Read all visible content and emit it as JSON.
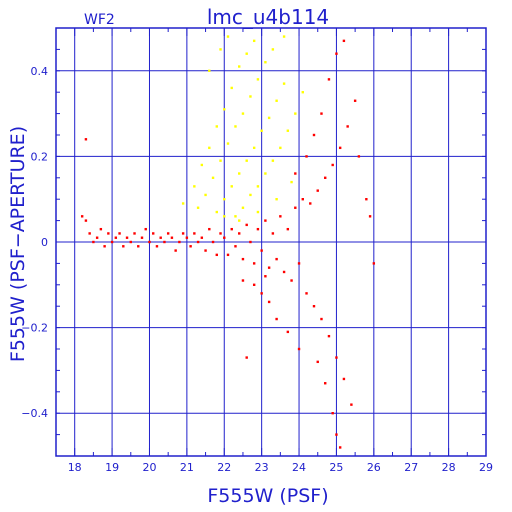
{
  "chart_data": {
    "type": "scatter",
    "title": "lmc_u4b114",
    "panel_label": "WF2",
    "xlabel": "F555W (PSF)",
    "ylabel": "F555W (PSF−APERTURE)",
    "xlim": [
      17.5,
      29
    ],
    "ylim": [
      -0.5,
      0.5
    ],
    "x_ticks": [
      18,
      19,
      20,
      21,
      22,
      23,
      24,
      25,
      26,
      27,
      28,
      29
    ],
    "y_ticks": [
      -0.4,
      -0.2,
      0,
      0.2,
      0.4
    ],
    "y_tick_labels": [
      "−0.4",
      "−0.2",
      "0",
      "0.2",
      "0.4"
    ],
    "grid": true,
    "colors": {
      "axes": "#2020cc",
      "grid": "#2020cc",
      "primary": "#ff0000",
      "secondary": "#ffff00"
    },
    "series": [
      {
        "color": "#ff0000",
        "points": [
          [
            18.2,
            0.06
          ],
          [
            18.3,
            0.05
          ],
          [
            18.4,
            0.02
          ],
          [
            18.5,
            0.0
          ],
          [
            18.6,
            0.01
          ],
          [
            18.7,
            0.03
          ],
          [
            18.8,
            -0.01
          ],
          [
            18.9,
            0.02
          ],
          [
            19.0,
            0.0
          ],
          [
            19.1,
            0.01
          ],
          [
            19.2,
            0.02
          ],
          [
            19.3,
            -0.01
          ],
          [
            19.4,
            0.01
          ],
          [
            19.5,
            0.0
          ],
          [
            19.6,
            0.02
          ],
          [
            19.7,
            -0.01
          ],
          [
            19.8,
            0.01
          ],
          [
            19.9,
            0.03
          ],
          [
            20.0,
            0.0
          ],
          [
            20.1,
            0.02
          ],
          [
            20.2,
            -0.01
          ],
          [
            20.3,
            0.01
          ],
          [
            20.4,
            0.0
          ],
          [
            20.5,
            0.02
          ],
          [
            20.6,
            0.01
          ],
          [
            20.7,
            -0.02
          ],
          [
            20.8,
            0.0
          ],
          [
            20.9,
            0.02
          ],
          [
            21.0,
            0.01
          ],
          [
            21.1,
            -0.01
          ],
          [
            21.2,
            0.02
          ],
          [
            21.3,
            0.0
          ],
          [
            21.4,
            0.01
          ],
          [
            21.5,
            -0.02
          ],
          [
            21.6,
            0.03
          ],
          [
            21.7,
            0.0
          ],
          [
            21.8,
            -0.03
          ],
          [
            21.9,
            0.02
          ],
          [
            22.0,
            0.01
          ],
          [
            22.1,
            -0.03
          ],
          [
            22.2,
            0.03
          ],
          [
            22.3,
            -0.01
          ],
          [
            22.4,
            0.02
          ],
          [
            22.5,
            -0.04
          ],
          [
            22.6,
            0.04
          ],
          [
            22.7,
            0.0
          ],
          [
            22.8,
            -0.05
          ],
          [
            22.9,
            0.03
          ],
          [
            23.0,
            -0.02
          ],
          [
            23.1,
            0.05
          ],
          [
            23.2,
            -0.06
          ],
          [
            23.3,
            0.02
          ],
          [
            23.4,
            -0.04
          ],
          [
            23.5,
            0.06
          ],
          [
            23.6,
            -0.07
          ],
          [
            23.7,
            0.03
          ],
          [
            23.8,
            -0.09
          ],
          [
            23.9,
            0.08
          ],
          [
            24.0,
            -0.05
          ],
          [
            24.1,
            0.1
          ],
          [
            24.2,
            -0.12
          ],
          [
            24.3,
            0.09
          ],
          [
            24.4,
            -0.15
          ],
          [
            24.5,
            0.12
          ],
          [
            24.6,
            -0.18
          ],
          [
            24.7,
            0.15
          ],
          [
            24.8,
            -0.22
          ],
          [
            24.9,
            0.18
          ],
          [
            25.0,
            -0.27
          ],
          [
            25.1,
            0.22
          ],
          [
            25.2,
            -0.32
          ],
          [
            25.3,
            0.27
          ],
          [
            25.4,
            -0.38
          ],
          [
            25.5,
            0.33
          ],
          [
            25.6,
            0.2
          ],
          [
            25.8,
            0.1
          ],
          [
            24.6,
            0.3
          ],
          [
            24.8,
            0.38
          ],
          [
            25.0,
            0.44
          ],
          [
            25.2,
            0.47
          ],
          [
            24.5,
            -0.28
          ],
          [
            24.7,
            -0.33
          ],
          [
            24.9,
            -0.4
          ],
          [
            25.0,
            -0.45
          ],
          [
            25.1,
            -0.48
          ],
          [
            23.2,
            -0.14
          ],
          [
            23.4,
            -0.18
          ],
          [
            23.7,
            -0.21
          ],
          [
            24.0,
            -0.25
          ],
          [
            22.8,
            -0.1
          ],
          [
            22.5,
            -0.09
          ],
          [
            23.0,
            -0.12
          ],
          [
            24.2,
            0.2
          ],
          [
            24.4,
            0.25
          ],
          [
            23.9,
            0.16
          ],
          [
            26.0,
            -0.05
          ],
          [
            25.9,
            0.06
          ],
          [
            18.3,
            0.24
          ],
          [
            22.6,
            -0.27
          ],
          [
            23.1,
            -0.08
          ]
        ]
      },
      {
        "color": "#ffff00",
        "points": [
          [
            20.9,
            0.09
          ],
          [
            21.2,
            0.13
          ],
          [
            21.4,
            0.18
          ],
          [
            21.6,
            0.22
          ],
          [
            21.8,
            0.27
          ],
          [
            22.0,
            0.31
          ],
          [
            22.2,
            0.36
          ],
          [
            22.4,
            0.41
          ],
          [
            22.6,
            0.44
          ],
          [
            22.8,
            0.47
          ],
          [
            21.3,
            0.08
          ],
          [
            21.5,
            0.11
          ],
          [
            21.7,
            0.15
          ],
          [
            21.9,
            0.19
          ],
          [
            22.1,
            0.23
          ],
          [
            22.3,
            0.27
          ],
          [
            22.5,
            0.3
          ],
          [
            22.7,
            0.34
          ],
          [
            22.9,
            0.38
          ],
          [
            23.1,
            0.42
          ],
          [
            21.8,
            0.07
          ],
          [
            22.0,
            0.1
          ],
          [
            22.2,
            0.13
          ],
          [
            22.4,
            0.16
          ],
          [
            22.6,
            0.19
          ],
          [
            22.8,
            0.22
          ],
          [
            23.0,
            0.26
          ],
          [
            23.2,
            0.29
          ],
          [
            23.4,
            0.33
          ],
          [
            23.6,
            0.37
          ],
          [
            22.3,
            0.06
          ],
          [
            22.5,
            0.08
          ],
          [
            22.7,
            0.11
          ],
          [
            22.9,
            0.13
          ],
          [
            23.1,
            0.16
          ],
          [
            23.3,
            0.19
          ],
          [
            23.5,
            0.22
          ],
          [
            23.7,
            0.26
          ],
          [
            23.9,
            0.3
          ],
          [
            24.1,
            0.35
          ],
          [
            21.6,
            0.4
          ],
          [
            21.9,
            0.45
          ],
          [
            22.1,
            0.48
          ],
          [
            23.3,
            0.45
          ],
          [
            23.6,
            0.48
          ],
          [
            22.0,
            0.06
          ],
          [
            22.4,
            0.05
          ],
          [
            22.9,
            0.07
          ],
          [
            23.4,
            0.1
          ],
          [
            23.8,
            0.14
          ]
        ]
      }
    ]
  }
}
